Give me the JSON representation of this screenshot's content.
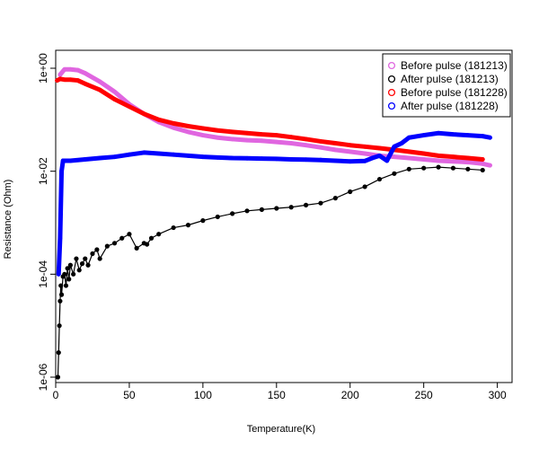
{
  "chart_data": {
    "type": "line",
    "title": "",
    "xlabel": "Temperature(K)",
    "ylabel": "Resistance (Ohm)",
    "xlim": [
      0,
      310
    ],
    "ylim": [
      1e-06,
      1
    ],
    "log_y": true,
    "grid": false,
    "legend_position": "top-right",
    "x_ticks": [
      0,
      50,
      100,
      150,
      200,
      250,
      300
    ],
    "x_tick_labels": [
      "0",
      "50",
      "100",
      "150",
      "200",
      "250",
      "300"
    ],
    "y_ticks": [
      1e-06,
      0.0001,
      0.01,
      1
    ],
    "y_tick_labels": [
      "1e-06",
      "1e-04",
      "1e-02",
      "1e+00"
    ],
    "series": [
      {
        "name": "Before pulse (181213)",
        "color": "#e066e0",
        "marker": "circle",
        "x": [
          3,
          6,
          10,
          15,
          20,
          30,
          40,
          50,
          60,
          70,
          80,
          90,
          100,
          110,
          120,
          130,
          140,
          150,
          160,
          170,
          180,
          190,
          200,
          210,
          220,
          230,
          240,
          250,
          260,
          270,
          280,
          290,
          295
        ],
        "y": [
          0.75,
          0.95,
          0.95,
          0.92,
          0.8,
          0.55,
          0.35,
          0.2,
          0.13,
          0.09,
          0.07,
          0.058,
          0.05,
          0.045,
          0.042,
          0.04,
          0.039,
          0.037,
          0.035,
          0.032,
          0.029,
          0.026,
          0.024,
          0.022,
          0.02,
          0.019,
          0.018,
          0.017,
          0.016,
          0.0155,
          0.015,
          0.014,
          0.013
        ]
      },
      {
        "name": "After pulse (181213)",
        "color": "#000000",
        "marker": "circle",
        "x": [
          1.5,
          2,
          2.5,
          3,
          3.5,
          4,
          5,
          6,
          7,
          8,
          9,
          10,
          12,
          14,
          16,
          18,
          20,
          22,
          25,
          28,
          30,
          35,
          40,
          45,
          50,
          55,
          60,
          62,
          65,
          70,
          80,
          90,
          100,
          110,
          120,
          130,
          140,
          150,
          160,
          170,
          180,
          190,
          200,
          210,
          220,
          230,
          240,
          250,
          260,
          270,
          280,
          290
        ],
        "y": [
          1e-06,
          3e-06,
          1e-05,
          3e-05,
          6e-05,
          4e-05,
          9e-05,
          0.0001,
          6e-05,
          0.00013,
          8e-05,
          0.00015,
          0.0001,
          0.0002,
          0.00012,
          0.00016,
          0.0002,
          0.00015,
          0.00025,
          0.0003,
          0.0002,
          0.00035,
          0.0004,
          0.0005,
          0.0006,
          0.00032,
          0.0004,
          0.00038,
          0.0005,
          0.0006,
          0.0008,
          0.0009,
          0.0011,
          0.0013,
          0.0015,
          0.0017,
          0.0018,
          0.0019,
          0.002,
          0.0022,
          0.0024,
          0.003,
          0.004,
          0.005,
          0.007,
          0.009,
          0.011,
          0.0115,
          0.012,
          0.0115,
          0.011,
          0.0105
        ]
      },
      {
        "name": "Before pulse (181228)",
        "color": "#ff0000",
        "marker": "circle",
        "x": [
          1,
          3,
          6,
          10,
          15,
          20,
          30,
          40,
          50,
          60,
          70,
          80,
          90,
          100,
          110,
          120,
          130,
          140,
          150,
          160,
          170,
          180,
          190,
          200,
          210,
          220,
          230,
          240,
          250,
          260,
          270,
          280,
          290
        ],
        "y": [
          0.58,
          0.62,
          0.6,
          0.6,
          0.58,
          0.5,
          0.38,
          0.25,
          0.18,
          0.13,
          0.1,
          0.085,
          0.075,
          0.068,
          0.062,
          0.058,
          0.055,
          0.052,
          0.05,
          0.046,
          0.042,
          0.038,
          0.035,
          0.032,
          0.03,
          0.028,
          0.026,
          0.024,
          0.022,
          0.02,
          0.019,
          0.018,
          0.017
        ]
      },
      {
        "name": "After pulse (181228)",
        "color": "#0000ff",
        "marker": "circle",
        "x": [
          2,
          3,
          4,
          5,
          10,
          20,
          30,
          40,
          50,
          60,
          70,
          80,
          90,
          100,
          110,
          120,
          130,
          140,
          150,
          160,
          170,
          180,
          190,
          200,
          210,
          215,
          220,
          225,
          230,
          235,
          240,
          250,
          260,
          270,
          280,
          290,
          295
        ],
        "y": [
          0.0001,
          0.0005,
          0.01,
          0.016,
          0.016,
          0.017,
          0.018,
          0.019,
          0.021,
          0.023,
          0.022,
          0.021,
          0.02,
          0.019,
          0.0185,
          0.018,
          0.0178,
          0.0176,
          0.0174,
          0.017,
          0.0168,
          0.0165,
          0.016,
          0.0155,
          0.0158,
          0.018,
          0.02,
          0.016,
          0.03,
          0.035,
          0.045,
          0.05,
          0.055,
          0.052,
          0.05,
          0.048,
          0.045
        ]
      }
    ]
  }
}
